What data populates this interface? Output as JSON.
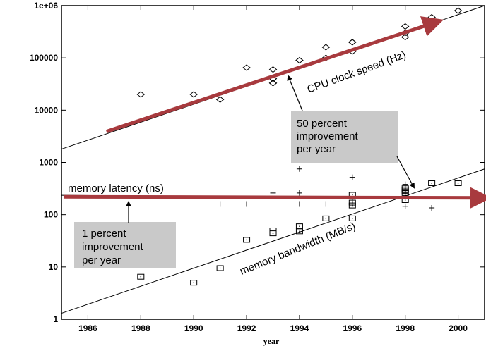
{
  "chart_data": {
    "type": "scatter",
    "scale": {
      "x": "linear",
      "y": "log"
    },
    "xlim": [
      1985,
      2001
    ],
    "ylim": [
      1,
      1000000
    ],
    "xlabel": "year",
    "x_ticks": [
      "1986",
      "1988",
      "1990",
      "1992",
      "1994",
      "1996",
      "1998",
      "2000"
    ],
    "y_ticks": [
      "1",
      "10",
      "100",
      "1000",
      "10000",
      "100000",
      "1e+06"
    ],
    "series": [
      {
        "name": "CPU clock speed (Hz)",
        "marker": "diamond",
        "x": [
          1988,
          1990,
          1991,
          1992,
          1993,
          1993,
          1993,
          1993,
          1994,
          1995,
          1995,
          1996,
          1996,
          1996,
          1998,
          1998,
          1998,
          1999,
          2000
        ],
        "y": [
          20000,
          20000,
          16000,
          65000,
          60000,
          40000,
          33000,
          33000,
          90000,
          160000,
          100000,
          200000,
          200000,
          133000,
          400000,
          300000,
          250000,
          600000,
          800000
        ],
        "trend": {
          "x": [
            1985,
            2001
          ],
          "y": [
            1800,
            1000000
          ]
        },
        "arrow": {
          "from": [
            1986.7,
            3900
          ],
          "to": [
            1999.2,
            490000
          ]
        }
      },
      {
        "name": "memory latency (ns)",
        "marker": "plus",
        "x": [
          1991,
          1992,
          1993,
          1993,
          1994,
          1994,
          1994,
          1995,
          1996,
          1996,
          1996,
          1998,
          1998,
          1998,
          1998,
          1999
        ],
        "y": [
          160,
          160,
          160,
          260,
          160,
          260,
          750,
          160,
          160,
          200,
          520,
          260,
          380,
          310,
          145,
          135
        ],
        "trend": {
          "x": [
            1985,
            2001
          ],
          "y": [
            235,
            205
          ]
        },
        "arrow": {
          "from": [
            1985.1,
            220
          ],
          "to": [
            2001,
            210
          ]
        }
      },
      {
        "name": "memory bandwidth (MB/s)",
        "marker": "square",
        "x": [
          1988,
          1990,
          1991,
          1992,
          1993,
          1993,
          1994,
          1994,
          1995,
          1996,
          1996,
          1996,
          1996,
          1998,
          1998,
          1998,
          1998,
          1998,
          1999,
          2000
        ],
        "y": [
          6.5,
          5,
          9.5,
          33,
          50,
          44,
          48,
          60,
          85,
          85,
          150,
          170,
          240,
          190,
          260,
          280,
          300,
          320,
          400,
          400
        ],
        "trend": {
          "x": [
            1985,
            2001
          ],
          "y": [
            1.3,
            750
          ]
        }
      }
    ],
    "annotations": [
      {
        "text": "CPU clock speed (Hz)"
      },
      {
        "text": "memory latency (ns)"
      },
      {
        "text": "memory bandwidth (MB/s)"
      },
      {
        "lines": [
          "50 percent",
          "improvement",
          "per year"
        ]
      },
      {
        "lines": [
          "1 percent",
          "improvement",
          "per year"
        ]
      }
    ],
    "colors": {
      "arrow": "#a83a3e",
      "box": "#c9c9c9",
      "line": "#000000"
    }
  }
}
